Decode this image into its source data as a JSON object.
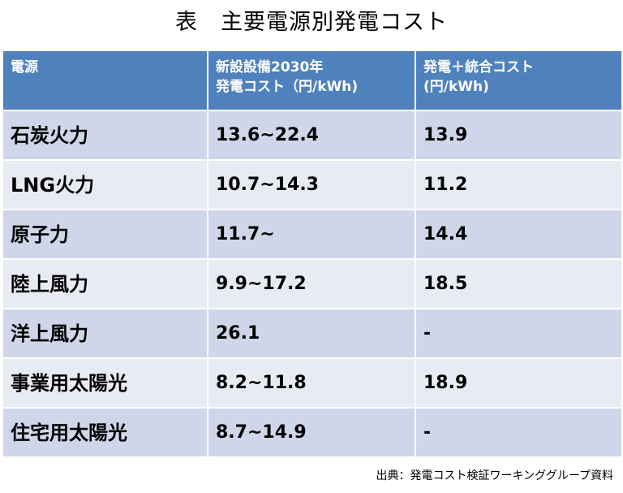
{
  "title": "表　主要電源別発電コスト",
  "table": {
    "header": {
      "col1": [
        "電源"
      ],
      "col2": [
        "新設設備2030年",
        "発電コスト（円/kWh)"
      ],
      "col3": [
        "発電＋統合コスト",
        "(円/kWh)"
      ]
    },
    "rows": [
      {
        "source": "石炭火力",
        "cost_2030": "13.6~22.4",
        "integrated_cost": "13.9"
      },
      {
        "source": "LNG火力",
        "cost_2030": "10.7~14.3",
        "integrated_cost": "11.2"
      },
      {
        "source": "原子力",
        "cost_2030": "11.7~",
        "integrated_cost": "14.4"
      },
      {
        "source": "陸上風力",
        "cost_2030": "9.9~17.2",
        "integrated_cost": "18.5"
      },
      {
        "source": "洋上風力",
        "cost_2030": "26.1",
        "integrated_cost": "-"
      },
      {
        "source": "事業用太陽光",
        "cost_2030": "8.2~11.8",
        "integrated_cost": "18.9"
      },
      {
        "source": "住宅用太陽光",
        "cost_2030": "8.7~14.9",
        "integrated_cost": "-"
      }
    ]
  },
  "source_note": "出典：発電コスト検証ワーキンググループ資料",
  "colors": {
    "header_bg": "#4f81bd",
    "header_text": "#ffffff",
    "row_odd_bg": "#d0d6e9",
    "row_even_bg": "#e9ebf4"
  }
}
